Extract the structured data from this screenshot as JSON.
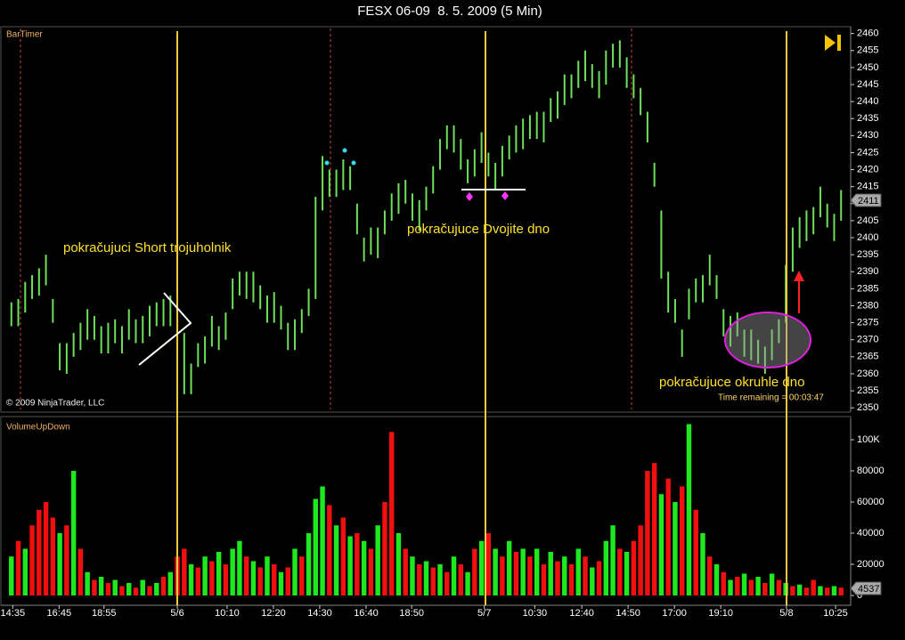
{
  "chart_data": [
    {
      "type": "range-bar",
      "title": "FESX 06-09  8. 5. 2009 (5 Min)",
      "label": "BarTimer",
      "annotations": [
        "pokračujuci Short trojuholnik",
        "pokračujuce Dvojite dno",
        "pokračujuce okruhle dno",
        "Time remaining = 00:03:47",
        "© 2009 NinjaTrader, LLC"
      ],
      "color": "#6fe05a",
      "xlim": [
        -1,
        121
      ],
      "ylim": [
        2349,
        2462
      ],
      "yticks": [
        2350,
        2355,
        2360,
        2365,
        2370,
        2375,
        2380,
        2385,
        2390,
        2395,
        2400,
        2405,
        2410,
        2415,
        2420,
        2425,
        2430,
        2435,
        2440,
        2445,
        2450,
        2455,
        2460
      ],
      "last_value": 2411,
      "high": [
        2381,
        2382,
        2387,
        2389,
        2391,
        2395,
        2382,
        2369,
        2369,
        2372,
        2375,
        2379,
        2377,
        2374,
        2375,
        2376,
        2374,
        2379,
        2376,
        2377,
        2380,
        2381,
        2382,
        2383,
        2376,
        2372,
        2363,
        2369,
        2371,
        2377,
        2374,
        2378,
        2388,
        2390,
        2390,
        2390,
        2386,
        2383,
        2384,
        2380,
        2375,
        2376,
        2379,
        2385,
        2412,
        2424,
        2420,
        2420,
        2423,
        2421,
        2410,
        2400,
        2403,
        2403,
        2408,
        2413,
        2416,
        2417,
        2413,
        2411,
        2415,
        2421,
        2429,
        2433,
        2433,
        2429,
        2423,
        2426,
        2431,
        2425,
        2422,
        2427,
        2430,
        2433,
        2435,
        2436,
        2437,
        2437,
        2441,
        2443,
        2448,
        2448,
        2452,
        2455,
        2451,
        2449,
        2455,
        2457,
        2458,
        2453,
        2448,
        2444,
        2437,
        2422,
        2408,
        2390,
        2382,
        2373,
        2385,
        2388,
        2389,
        2395,
        2389,
        2379,
        2377,
        2378,
        2373,
        2373,
        2370,
        2368,
        2373,
        2376,
        2392,
        2403,
        2406,
        2408,
        2409,
        2415,
        2410,
        2407,
        2414
      ],
      "low": [
        2374,
        2374,
        2378,
        2382,
        2383,
        2386,
        2375,
        2361,
        2360,
        2365,
        2367,
        2370,
        2370,
        2366,
        2366,
        2369,
        2366,
        2370,
        2369,
        2369,
        2371,
        2374,
        2374,
        2374,
        2369,
        2354,
        2354,
        2362,
        2363,
        2368,
        2367,
        2370,
        2379,
        2383,
        2382,
        2381,
        2379,
        2375,
        2375,
        2373,
        2367,
        2367,
        2372,
        2377,
        2382,
        2408,
        2412,
        2412,
        2414,
        2414,
        2401,
        2393,
        2395,
        2394,
        2401,
        2405,
        2407,
        2410,
        2405,
        2402,
        2408,
        2413,
        2420,
        2426,
        2425,
        2420,
        2416,
        2418,
        2422,
        2418,
        2414,
        2418,
        2423,
        2425,
        2426,
        2429,
        2429,
        2428,
        2434,
        2435,
        2439,
        2441,
        2444,
        2446,
        2444,
        2441,
        2445,
        2450,
        2450,
        2444,
        2441,
        2436,
        2428,
        2415,
        2388,
        2378,
        2375,
        2365,
        2376,
        2381,
        2381,
        2386,
        2382,
        2371,
        2368,
        2371,
        2365,
        2364,
        2363,
        2360,
        2364,
        2369,
        2375,
        2390,
        2397,
        2399,
        2401,
        2406,
        2403,
        2399,
        2405
      ]
    },
    {
      "type": "bar",
      "title": "VolumeUpDown",
      "xlim": [
        -1,
        121
      ],
      "xticks": [
        {
          "value": 0.2,
          "label": "14:35"
        },
        {
          "value": 6.9,
          "label": "16:45"
        },
        {
          "value": 13.4,
          "label": "18:55"
        },
        {
          "value": 24.0,
          "label": "5/6"
        },
        {
          "value": 31.2,
          "label": "10:10"
        },
        {
          "value": 37.9,
          "label": "12:20"
        },
        {
          "value": 44.6,
          "label": "14:30"
        },
        {
          "value": 51.3,
          "label": "16:40"
        },
        {
          "value": 57.9,
          "label": "18:50"
        },
        {
          "value": 68.4,
          "label": "5/7"
        },
        {
          "value": 75.7,
          "label": "10:30"
        },
        {
          "value": 82.5,
          "label": "12:40"
        },
        {
          "value": 89.2,
          "label": "14:50"
        },
        {
          "value": 95.9,
          "label": "17:00"
        },
        {
          "value": 102.6,
          "label": "19:10"
        },
        {
          "value": 112.1,
          "label": "5/8"
        },
        {
          "value": 119.2,
          "label": "10:25"
        }
      ],
      "ylim": [
        -6300,
        113700
      ],
      "yticks": [
        0,
        20000,
        40000,
        60000,
        80000,
        {
          "value": 100000,
          "label": "100K"
        }
      ],
      "last_value": 4537,
      "series": [
        {
          "color": "#1ee81e",
          "values": [
            25000,
            null,
            30000,
            null,
            null,
            null,
            null,
            40000,
            null,
            80000,
            null,
            15000,
            null,
            12000,
            null,
            10000,
            null,
            8000,
            null,
            10000,
            null,
            8000,
            null,
            15000,
            null,
            null,
            20000,
            null,
            25000,
            null,
            28000,
            null,
            30000,
            35000,
            null,
            22000,
            null,
            25000,
            null,
            15000,
            null,
            30000,
            null,
            40000,
            62000,
            70000,
            null,
            45000,
            null,
            38000,
            null,
            35000,
            null,
            45000,
            null,
            null,
            40000,
            null,
            25000,
            null,
            22000,
            null,
            20000,
            null,
            25000,
            null,
            15000,
            null,
            35000,
            null,
            30000,
            null,
            35000,
            null,
            30000,
            null,
            30000,
            null,
            28000,
            null,
            25000,
            null,
            30000,
            null,
            18000,
            null,
            35000,
            45000,
            null,
            28000,
            null,
            null,
            null,
            null,
            65000,
            null,
            60000,
            null,
            110000,
            null,
            40000,
            null,
            20000,
            null,
            10000,
            null,
            14000,
            null,
            12000,
            null,
            14000,
            null,
            8000,
            null,
            7000,
            null,
            null,
            6000,
            null,
            6000,
            null
          ]
        },
        {
          "color": "#f01010",
          "values": [
            null,
            35000,
            null,
            45000,
            55000,
            60000,
            50000,
            null,
            45000,
            null,
            30000,
            null,
            10000,
            null,
            8000,
            null,
            6000,
            null,
            5000,
            null,
            6000,
            null,
            12000,
            null,
            25000,
            30000,
            null,
            18000,
            null,
            22000,
            null,
            20000,
            null,
            null,
            25000,
            null,
            18000,
            null,
            20000,
            null,
            18000,
            null,
            25000,
            null,
            null,
            null,
            58000,
            null,
            50000,
            null,
            40000,
            null,
            30000,
            null,
            60000,
            105000,
            null,
            30000,
            null,
            20000,
            null,
            18000,
            null,
            15000,
            null,
            20000,
            null,
            30000,
            null,
            40000,
            null,
            25000,
            null,
            28000,
            null,
            25000,
            null,
            20000,
            null,
            22000,
            null,
            20000,
            null,
            25000,
            null,
            22000,
            null,
            null,
            30000,
            null,
            35000,
            45000,
            80000,
            85000,
            null,
            75000,
            null,
            70000,
            null,
            55000,
            null,
            25000,
            null,
            15000,
            null,
            12000,
            null,
            10000,
            null,
            8000,
            null,
            10000,
            null,
            6000,
            null,
            5000,
            10000,
            null,
            5000,
            null,
            5000
          ]
        }
      ]
    }
  ]
}
